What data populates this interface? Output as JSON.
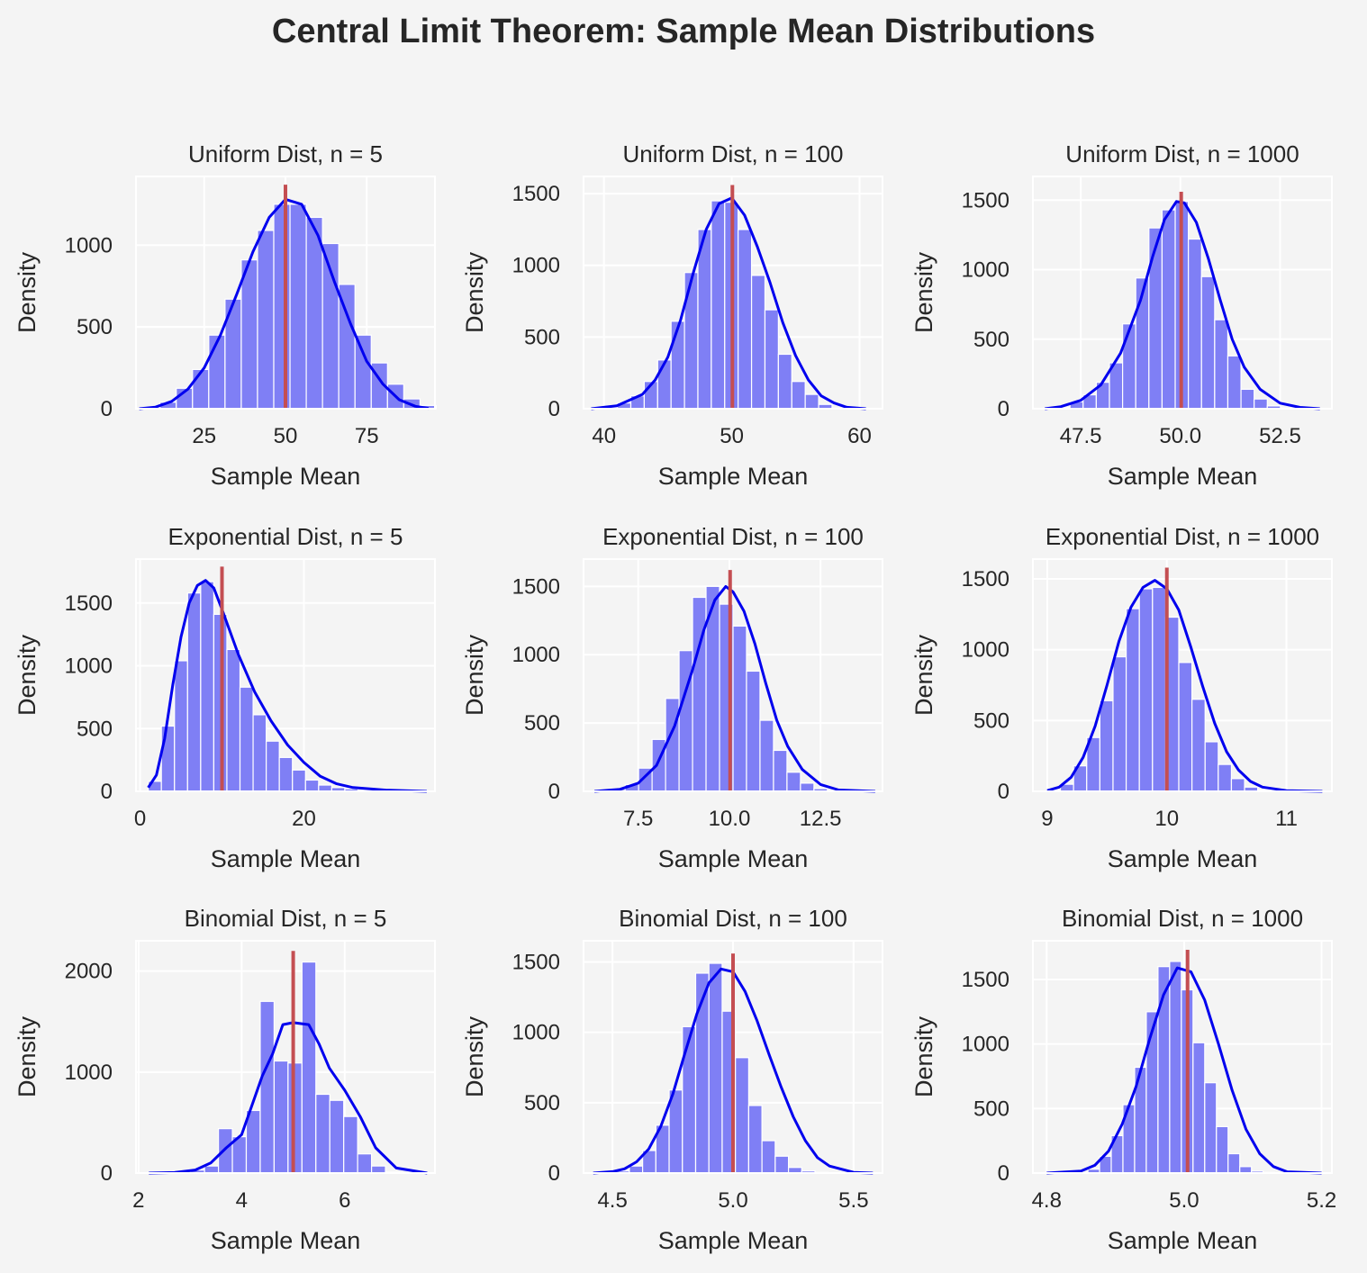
{
  "figure": {
    "title": "Central Limit Theorem: Sample Mean Distributions",
    "colors": {
      "background": "#f4f4f4",
      "axes_face": "#f4f4f4",
      "grid": "#ffffff",
      "bars": "#7f7ff5",
      "kde": "#0000ee",
      "mean_line": "#c44e52",
      "text": "#262626"
    }
  },
  "chart_data": [
    {
      "type": "bar",
      "title": "Uniform Dist, n = 5",
      "xlabel": "Sample Mean",
      "ylabel": "Density",
      "xlim": [
        4,
        96
      ],
      "ylim": [
        0,
        1420
      ],
      "xticks": [
        25,
        50,
        75
      ],
      "xtick_labels": [
        "25",
        "50",
        "75"
      ],
      "yticks": [
        0,
        500,
        1000
      ],
      "ytick_labels": [
        "0",
        "500",
        "1000"
      ],
      "bin_edges": [
        6.4,
        11.4,
        16.4,
        21.4,
        26.4,
        31.4,
        36.4,
        41.4,
        46.4,
        51.4,
        56.4,
        61.4,
        66.4,
        71.4,
        76.4,
        81.4,
        86.4,
        91.4,
        96.4
      ],
      "bin_counts": [
        5,
        40,
        125,
        240,
        450,
        670,
        910,
        1090,
        1250,
        1250,
        1170,
        1010,
        760,
        450,
        280,
        150,
        60,
        20
      ],
      "kde_x": [
        5,
        10,
        15,
        20,
        25,
        30,
        35,
        40,
        45,
        50,
        55,
        60,
        65,
        70,
        75,
        80,
        85,
        90,
        94
      ],
      "kde_y": [
        0,
        10,
        45,
        120,
        250,
        450,
        700,
        960,
        1170,
        1280,
        1250,
        1060,
        780,
        520,
        290,
        150,
        55,
        15,
        2
      ],
      "mean": 50,
      "mean_line_top": 1370
    },
    {
      "type": "bar",
      "title": "Uniform Dist, n = 100",
      "xlabel": "Sample Mean",
      "ylabel": "Density",
      "xlim": [
        38.4,
        61.8
      ],
      "ylim": [
        0,
        1620
      ],
      "xticks": [
        40,
        50,
        60
      ],
      "xtick_labels": [
        "40",
        "50",
        "60"
      ],
      "yticks": [
        0,
        500,
        1000,
        1500
      ],
      "ytick_labels": [
        "0",
        "500",
        "1000",
        "1500"
      ],
      "bin_edges": [
        40,
        41.05,
        42.1,
        43.15,
        44.2,
        45.25,
        46.3,
        47.35,
        48.4,
        49.45,
        50.5,
        51.55,
        52.6,
        53.65,
        54.7,
        55.75,
        56.8,
        57.85,
        58.9
      ],
      "bin_counts": [
        10,
        40,
        90,
        190,
        340,
        610,
        950,
        1250,
        1450,
        1440,
        1250,
        930,
        690,
        380,
        190,
        100,
        30,
        5
      ],
      "kde_x": [
        39,
        41,
        43,
        44,
        45,
        46,
        47,
        48,
        49,
        50,
        51,
        52,
        53,
        54,
        55,
        56,
        57,
        58,
        59,
        60.5
      ],
      "kde_y": [
        0,
        20,
        100,
        200,
        360,
        620,
        950,
        1250,
        1430,
        1470,
        1350,
        1130,
        880,
        600,
        370,
        200,
        90,
        40,
        10,
        0
      ],
      "mean": 50.05,
      "mean_line_top": 1560
    },
    {
      "type": "bar",
      "title": "Uniform Dist, n = 1000",
      "xlabel": "Sample Mean",
      "ylabel": "Density",
      "xlim": [
        46.3,
        53.8
      ],
      "ylim": [
        0,
        1670
      ],
      "xticks": [
        47.5,
        50.0,
        52.5
      ],
      "xtick_labels": [
        "47.5",
        "50.0",
        "52.5"
      ],
      "yticks": [
        0,
        500,
        1000,
        1500
      ],
      "ytick_labels": [
        "0",
        "500",
        "1000",
        "1500"
      ],
      "bin_edges": [
        46.9,
        47.23,
        47.56,
        47.89,
        48.22,
        48.55,
        48.88,
        49.21,
        49.54,
        49.87,
        50.2,
        50.53,
        50.86,
        51.19,
        51.52,
        51.85,
        52.18,
        52.51,
        52.84
      ],
      "bin_counts": [
        10,
        50,
        100,
        190,
        330,
        610,
        940,
        1300,
        1430,
        1490,
        1220,
        950,
        640,
        380,
        140,
        70,
        20,
        5
      ],
      "kde_x": [
        46.6,
        47,
        47.5,
        48,
        48.5,
        49,
        49.3,
        49.6,
        49.9,
        50.1,
        50.4,
        50.7,
        51,
        51.3,
        51.6,
        52,
        52.5,
        53,
        53.5
      ],
      "kde_y": [
        0,
        15,
        60,
        170,
        400,
        780,
        1090,
        1360,
        1490,
        1480,
        1340,
        1080,
        780,
        500,
        300,
        140,
        40,
        10,
        0
      ],
      "mean": 50.02,
      "mean_line_top": 1560
    },
    {
      "type": "bar",
      "title": "Exponential Dist, n = 5",
      "xlabel": "Sample Mean",
      "ylabel": "Density",
      "xlim": [
        -0.5,
        36
      ],
      "ylim": [
        0,
        1850
      ],
      "xticks": [
        0,
        20
      ],
      "xtick_labels": [
        "0",
        "20"
      ],
      "yticks": [
        0,
        500,
        1000,
        1500
      ],
      "ytick_labels": [
        "0",
        "500",
        "1000",
        "1500"
      ],
      "bin_edges": [
        1,
        2.6,
        4.2,
        5.8,
        7.4,
        9,
        10.6,
        12.2,
        13.8,
        15.4,
        17,
        18.6,
        20.2,
        21.8,
        23.4,
        25,
        26.6,
        28.2,
        29.8,
        31.4,
        33,
        34.6
      ],
      "bin_counts": [
        80,
        520,
        1040,
        1580,
        1670,
        1410,
        1130,
        830,
        610,
        400,
        270,
        170,
        90,
        50,
        30,
        20,
        10,
        5,
        3,
        2,
        1
      ],
      "kde_x": [
        1,
        2,
        3,
        4,
        5,
        6,
        7,
        8,
        9,
        10,
        11,
        12,
        14,
        16,
        18,
        20,
        22,
        24,
        26,
        30,
        35
      ],
      "kde_y": [
        30,
        130,
        420,
        850,
        1230,
        1500,
        1640,
        1680,
        1620,
        1450,
        1270,
        1090,
        790,
        560,
        370,
        230,
        120,
        60,
        30,
        10,
        0
      ],
      "mean": 10,
      "mean_line_top": 1790
    },
    {
      "type": "bar",
      "title": "Exponential Dist, n = 100",
      "xlabel": "Sample Mean",
      "ylabel": "Density",
      "xlim": [
        6,
        14.2
      ],
      "ylim": [
        0,
        1700
      ],
      "xticks": [
        7.5,
        10.0,
        12.5
      ],
      "xtick_labels": [
        "7.5",
        "10.0",
        "12.5"
      ],
      "yticks": [
        0,
        500,
        1000,
        1500
      ],
      "ytick_labels": [
        "0",
        "500",
        "1000",
        "1500"
      ],
      "bin_edges": [
        6.4,
        6.77,
        7.14,
        7.51,
        7.88,
        8.25,
        8.62,
        8.99,
        9.36,
        9.73,
        10.1,
        10.47,
        10.84,
        11.21,
        11.58,
        11.95,
        12.32,
        12.69,
        13.06
      ],
      "bin_counts": [
        5,
        15,
        50,
        170,
        380,
        680,
        1030,
        1420,
        1500,
        1370,
        1210,
        880,
        520,
        300,
        140,
        60,
        20,
        5
      ],
      "kde_x": [
        6.3,
        7,
        7.5,
        8,
        8.5,
        9,
        9.3,
        9.6,
        9.9,
        10.1,
        10.4,
        10.7,
        11,
        11.3,
        11.6,
        12,
        12.5,
        13,
        14
      ],
      "kde_y": [
        0,
        15,
        60,
        190,
        480,
        900,
        1180,
        1400,
        1500,
        1460,
        1320,
        1080,
        790,
        520,
        330,
        160,
        50,
        10,
        0
      ],
      "mean": 10.02,
      "mean_line_top": 1620
    },
    {
      "type": "bar",
      "title": "Exponential Dist, n = 1000",
      "xlabel": "Sample Mean",
      "ylabel": "Density",
      "xlim": [
        8.88,
        11.38
      ],
      "ylim": [
        0,
        1640
      ],
      "xticks": [
        9,
        10,
        11
      ],
      "xtick_labels": [
        "9",
        "10",
        "11"
      ],
      "yticks": [
        0,
        500,
        1000,
        1500
      ],
      "ytick_labels": [
        "0",
        "500",
        "1000",
        "1500"
      ],
      "bin_edges": [
        9.0,
        9.11,
        9.22,
        9.33,
        9.44,
        9.55,
        9.66,
        9.77,
        9.88,
        9.99,
        10.1,
        10.21,
        10.32,
        10.43,
        10.54,
        10.65,
        10.76,
        10.87,
        10.98
      ],
      "bin_counts": [
        10,
        50,
        180,
        380,
        640,
        950,
        1290,
        1430,
        1440,
        1230,
        910,
        650,
        350,
        190,
        90,
        30,
        10,
        5
      ],
      "kde_x": [
        9,
        9.1,
        9.2,
        9.3,
        9.4,
        9.5,
        9.6,
        9.7,
        9.8,
        9.9,
        10,
        10.1,
        10.2,
        10.3,
        10.4,
        10.5,
        10.6,
        10.7,
        10.8,
        11,
        11.3
      ],
      "kde_y": [
        5,
        30,
        100,
        240,
        460,
        750,
        1060,
        1300,
        1440,
        1490,
        1430,
        1280,
        1020,
        740,
        480,
        280,
        150,
        70,
        30,
        5,
        0
      ],
      "mean": 10.0,
      "mean_line_top": 1580
    },
    {
      "type": "bar",
      "title": "Binomial Dist, n = 5",
      "xlabel": "Sample Mean",
      "ylabel": "Density",
      "xlim": [
        1.95,
        7.75
      ],
      "ylim": [
        0,
        2300
      ],
      "xticks": [
        2,
        4,
        6
      ],
      "xtick_labels": [
        "2",
        "4",
        "6"
      ],
      "yticks": [
        0,
        1000,
        2000
      ],
      "ytick_labels": [
        "0",
        "1000",
        "2000"
      ],
      "bin_edges": [
        2.2,
        2.47,
        2.74,
        3.01,
        3.28,
        3.55,
        3.82,
        4.09,
        4.36,
        4.63,
        4.9,
        5.17,
        5.44,
        5.71,
        5.98,
        6.25,
        6.52,
        6.79,
        7.06,
        7.33
      ],
      "bin_counts": [
        0,
        0,
        10,
        30,
        70,
        440,
        360,
        620,
        1700,
        1110,
        1090,
        2090,
        780,
        720,
        560,
        190,
        70,
        10,
        0
      ],
      "kde_x": [
        2.2,
        2.7,
        3.1,
        3.4,
        3.7,
        4.0,
        4.2,
        4.4,
        4.6,
        4.8,
        5.0,
        5.3,
        5.5,
        5.7,
        6.0,
        6.3,
        6.6,
        7.0,
        7.6
      ],
      "kde_y": [
        0,
        5,
        30,
        100,
        250,
        380,
        670,
        960,
        1180,
        1470,
        1490,
        1470,
        1280,
        1040,
        820,
        560,
        250,
        50,
        0
      ],
      "mean": 5.0,
      "mean_line_top": 2200
    },
    {
      "type": "bar",
      "title": "Binomial Dist, n = 100",
      "xlabel": "Sample Mean",
      "ylabel": "Density",
      "xlim": [
        4.38,
        5.62
      ],
      "ylim": [
        0,
        1650
      ],
      "xticks": [
        4.5,
        5.0,
        5.5
      ],
      "xtick_labels": [
        "4.5",
        "5.0",
        "5.5"
      ],
      "yticks": [
        0,
        500,
        1000,
        1500
      ],
      "ytick_labels": [
        "0",
        "500",
        "1000",
        "1500"
      ],
      "bin_edges": [
        4.46,
        4.515,
        4.57,
        4.625,
        4.68,
        4.735,
        4.79,
        4.845,
        4.9,
        4.955,
        5.01,
        5.065,
        5.12,
        5.175,
        5.23,
        5.285,
        5.34,
        5.395,
        5.45,
        5.505
      ],
      "bin_counts": [
        5,
        15,
        50,
        160,
        340,
        590,
        1040,
        1420,
        1490,
        1150,
        820,
        480,
        230,
        120,
        40,
        15,
        5,
        2,
        1
      ],
      "kde_x": [
        4.42,
        4.5,
        4.55,
        4.6,
        4.65,
        4.7,
        4.75,
        4.8,
        4.85,
        4.9,
        4.95,
        5.0,
        5.05,
        5.1,
        5.15,
        5.2,
        5.25,
        5.3,
        5.35,
        5.4,
        5.5,
        5.58
      ],
      "kde_y": [
        0,
        10,
        30,
        80,
        170,
        330,
        560,
        850,
        1130,
        1350,
        1450,
        1430,
        1290,
        1080,
        840,
        610,
        400,
        230,
        110,
        50,
        5,
        0
      ],
      "mean": 5.0,
      "mean_line_top": 1560
    },
    {
      "type": "bar",
      "title": "Binomial Dist, n = 1000",
      "xlabel": "Sample Mean",
      "ylabel": "Density",
      "xlim": [
        4.78,
        5.215
      ],
      "ylim": [
        0,
        1800
      ],
      "xticks": [
        4.8,
        5.0,
        5.2
      ],
      "xtick_labels": [
        "4.8",
        "5.0",
        "5.2"
      ],
      "yticks": [
        0,
        500,
        1000,
        1500
      ],
      "ytick_labels": [
        "0",
        "500",
        "1000",
        "1500"
      ],
      "bin_edges": [
        4.86,
        4.877,
        4.894,
        4.911,
        4.928,
        4.945,
        4.962,
        4.979,
        4.996,
        5.013,
        5.03,
        5.047,
        5.064,
        5.081,
        5.098,
        5.115,
        5.132,
        5.149
      ],
      "bin_counts": [
        30,
        130,
        290,
        530,
        820,
        1250,
        1600,
        1640,
        1420,
        1010,
        700,
        360,
        150,
        50,
        15,
        5,
        2
      ],
      "kde_x": [
        4.8,
        4.85,
        4.87,
        4.89,
        4.91,
        4.93,
        4.95,
        4.97,
        4.99,
        5.01,
        5.03,
        5.05,
        5.07,
        5.09,
        5.11,
        5.13,
        5.15,
        5.2
      ],
      "kde_y": [
        0,
        15,
        60,
        170,
        380,
        670,
        1040,
        1380,
        1590,
        1560,
        1340,
        1000,
        640,
        340,
        150,
        50,
        10,
        0
      ],
      "mean": 5.005,
      "mean_line_top": 1730
    }
  ]
}
